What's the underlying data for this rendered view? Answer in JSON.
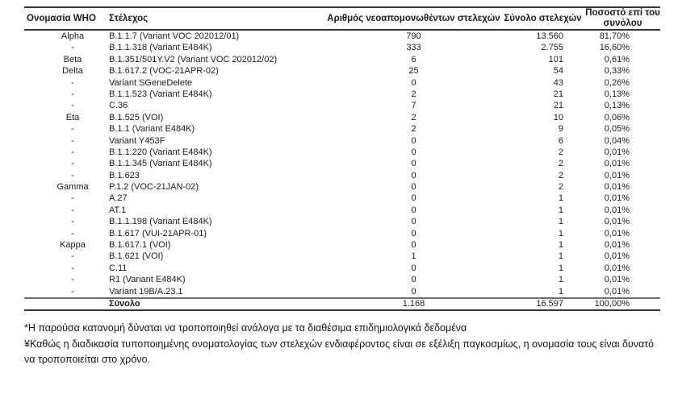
{
  "table": {
    "columns": [
      {
        "key": "who",
        "label": "Ονομασία WHO"
      },
      {
        "key": "strain",
        "label": "Στέλεχος"
      },
      {
        "key": "new_isolates",
        "label": "Αριθμός νεοαπομονωθέντων στελεχών"
      },
      {
        "key": "total_strains",
        "label": "Σύνολο στελεχών"
      },
      {
        "key": "percent_of_total",
        "label": "Ποσοστό επί του συνόλου"
      }
    ],
    "rows": [
      [
        "Alpha",
        "B.1.1.7 (Variant VOC 202012/01)",
        "790",
        "13.560",
        "81,70%"
      ],
      [
        "-",
        "B.1.1.318 (Variant E484K)",
        "333",
        "2.755",
        "16,60%"
      ],
      [
        "Beta",
        "B.1.351/501Y.V2 (Variant VOC 202012/02)",
        "6",
        "101",
        "0,61%"
      ],
      [
        "Delta",
        "B.1.617.2 (VOC-21APR-02)",
        "25",
        "54",
        "0,33%"
      ],
      [
        "-",
        "Variant SGeneDelete",
        "0",
        "43",
        "0,26%"
      ],
      [
        "-",
        "B.1.1.523 (Variant E484K)",
        "2",
        "21",
        "0,13%"
      ],
      [
        "-",
        "C.36",
        "7",
        "21",
        "0,13%"
      ],
      [
        "Eta",
        "B.1.525 (VOI)",
        "2",
        "10",
        "0,06%"
      ],
      [
        "-",
        "B.1.1 (Variant E484K)",
        "2",
        "9",
        "0,05%"
      ],
      [
        "-",
        "Variant Y453F",
        "0",
        "6",
        "0,04%"
      ],
      [
        "-",
        "B.1.1.220 (Variant E484K)",
        "0",
        "2",
        "0,01%"
      ],
      [
        "-",
        "B.1.1.345 (Variant E484K)",
        "0",
        "2",
        "0,01%"
      ],
      [
        "-",
        "B.1.623",
        "0",
        "2",
        "0,01%"
      ],
      [
        "Gamma",
        "P.1.2 (VOC-21JAN-02)",
        "0",
        "2",
        "0,01%"
      ],
      [
        "-",
        "A.27",
        "0",
        "1",
        "0,01%"
      ],
      [
        "-",
        "AT.1",
        "0",
        "1",
        "0,01%"
      ],
      [
        "-",
        "B.1.1.198 (Variant E484K)",
        "0",
        "1",
        "0,01%"
      ],
      [
        "-",
        "B.1.617 (VUI-21APR-01)",
        "0",
        "1",
        "0,01%"
      ],
      [
        "Kappa",
        "B.1.617.1 (VOI)",
        "0",
        "1",
        "0,01%"
      ],
      [
        "-",
        "B.1.621 (VOI)",
        "1",
        "1",
        "0,01%"
      ],
      [
        "-",
        "C.11",
        "0",
        "1",
        "0,01%"
      ],
      [
        "-",
        "R1 (Variant E484K)",
        "0",
        "1",
        "0,01%"
      ],
      [
        "-",
        "Variant 19B/A.23.1",
        "0",
        "1",
        "0,01%"
      ]
    ],
    "total_row": {
      "who": "",
      "label": "Σύνολο",
      "new_isolates": "1.168",
      "total_strains": "16.597",
      "percent": "100,00%"
    }
  },
  "footnotes": {
    "note1": "*Η παρούσα κατανομή δύναται να τροποποιηθεί ανάλογα με τα διαθέσιμα επιδημιολογικά δεδομένα",
    "note2": "¥Καθώς η διαδικασία τυποποιημένης ονοματολογίας των στελεχών ενδιαφέροντος είναι σε εξέλιξη παγκοσμίως, η ονομασία τους είναι δυνατό να τροποποιείται στο χρόνο."
  }
}
